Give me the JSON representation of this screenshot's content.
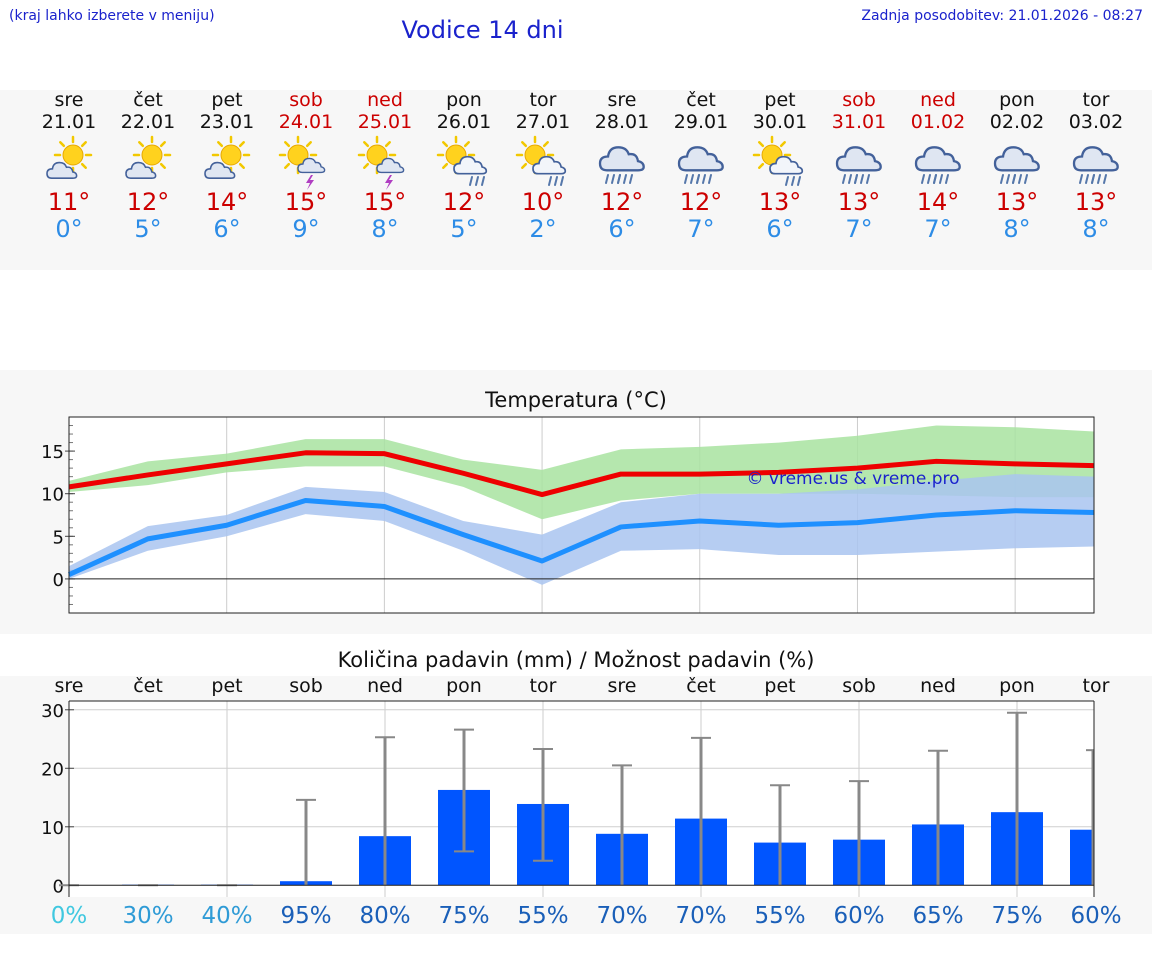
{
  "header": {
    "menu_hint": "(kraj lahko izberete v meniju)",
    "title": "Vodice 14 dni",
    "last_update": "Zadnja posodobitev: 21.01.2026 - 08:27"
  },
  "colors": {
    "accent_blue": "#1a22cc",
    "max_red": "#cc0000",
    "min_blue": "#2d8ce6",
    "max_band": "#a8e3a0",
    "min_band": "#a9c4f0",
    "bar_blue": "#0055ff",
    "whisker_gray": "#888888"
  },
  "days": [
    {
      "name": "sre",
      "date": "21.01",
      "weekend": false,
      "icon": "sun-cloud-icon",
      "tmax": "11°",
      "tmin": "0°"
    },
    {
      "name": "čet",
      "date": "22.01",
      "weekend": false,
      "icon": "sun-cloud-icon",
      "tmax": "12°",
      "tmin": "5°"
    },
    {
      "name": "pet",
      "date": "23.01",
      "weekend": false,
      "icon": "sun-cloud-icon",
      "tmax": "14°",
      "tmin": "6°"
    },
    {
      "name": "sob",
      "date": "24.01",
      "weekend": true,
      "icon": "sun-storm-icon",
      "tmax": "15°",
      "tmin": "9°"
    },
    {
      "name": "ned",
      "date": "25.01",
      "weekend": true,
      "icon": "sun-storm-icon",
      "tmax": "15°",
      "tmin": "8°"
    },
    {
      "name": "pon",
      "date": "26.01",
      "weekend": false,
      "icon": "sun-rain-icon",
      "tmax": "12°",
      "tmin": "5°"
    },
    {
      "name": "tor",
      "date": "27.01",
      "weekend": false,
      "icon": "sun-rain-icon",
      "tmax": "10°",
      "tmin": "2°"
    },
    {
      "name": "sre",
      "date": "28.01",
      "weekend": false,
      "icon": "heavy-rain-icon",
      "tmax": "12°",
      "tmin": "6°"
    },
    {
      "name": "čet",
      "date": "29.01",
      "weekend": false,
      "icon": "heavy-rain-icon",
      "tmax": "12°",
      "tmin": "7°"
    },
    {
      "name": "pet",
      "date": "30.01",
      "weekend": false,
      "icon": "sun-rain-icon",
      "tmax": "13°",
      "tmin": "6°"
    },
    {
      "name": "sob",
      "date": "31.01",
      "weekend": true,
      "icon": "heavy-rain-icon",
      "tmax": "13°",
      "tmin": "7°"
    },
    {
      "name": "ned",
      "date": "01.02",
      "weekend": true,
      "icon": "heavy-rain-icon",
      "tmax": "14°",
      "tmin": "7°"
    },
    {
      "name": "pon",
      "date": "02.02",
      "weekend": false,
      "icon": "heavy-rain-icon",
      "tmax": "13°",
      "tmin": "8°"
    },
    {
      "name": "tor",
      "date": "03.02",
      "weekend": false,
      "icon": "heavy-rain-icon",
      "tmax": "13°",
      "tmin": "8°"
    }
  ],
  "chart_data": [
    {
      "type": "line",
      "title": "Temperatura (°C)",
      "watermark": "© vreme.us & vreme.pro",
      "x": [
        "21.01",
        "22.01",
        "23.01",
        "24.01",
        "25.01",
        "26.01",
        "27.01",
        "28.01",
        "29.01",
        "30.01",
        "31.01",
        "01.02",
        "02.02",
        "03.02"
      ],
      "ylim": [
        -4,
        19
      ],
      "yticks": [
        0,
        5,
        10,
        15
      ],
      "series": [
        {
          "name": "max",
          "color": "#ee0000",
          "values": [
            10.8,
            12.2,
            13.5,
            14.8,
            14.7,
            12.4,
            9.9,
            12.3,
            12.3,
            12.5,
            13.0,
            13.8,
            13.5,
            13.3
          ]
        },
        {
          "name": "max_low",
          "values": [
            10.2,
            11.0,
            12.5,
            13.2,
            13.2,
            10.8,
            7.0,
            9.2,
            10.0,
            10.0,
            10.0,
            9.8,
            9.6,
            9.6
          ]
        },
        {
          "name": "max_high",
          "values": [
            11.5,
            13.8,
            14.7,
            16.4,
            16.4,
            14.0,
            12.8,
            15.2,
            15.5,
            16.0,
            16.8,
            18.0,
            17.8,
            17.3
          ]
        },
        {
          "name": "min",
          "color": "#1e90ff",
          "values": [
            0.5,
            4.7,
            6.3,
            9.2,
            8.5,
            5.2,
            2.1,
            6.1,
            6.8,
            6.3,
            6.6,
            7.5,
            8.0,
            7.8
          ]
        },
        {
          "name": "min_low",
          "values": [
            0.0,
            3.3,
            5.0,
            7.6,
            6.8,
            3.3,
            -0.7,
            3.3,
            3.5,
            2.8,
            2.8,
            3.2,
            3.6,
            3.8
          ]
        },
        {
          "name": "min_high",
          "values": [
            1.5,
            6.2,
            7.5,
            10.8,
            10.2,
            6.8,
            5.2,
            9.0,
            10.0,
            10.0,
            10.5,
            11.5,
            12.3,
            12.0
          ]
        }
      ]
    },
    {
      "type": "bar",
      "title": "Količina padavin (mm) / Možnost padavin (%)",
      "categories": [
        "sre",
        "čet",
        "pet",
        "sob",
        "ned",
        "pon",
        "tor",
        "sre",
        "čet",
        "pet",
        "sob",
        "ned",
        "pon",
        "tor"
      ],
      "values": [
        0.0,
        0.1,
        0.1,
        0.7,
        8.4,
        16.3,
        13.9,
        8.8,
        11.4,
        7.3,
        7.8,
        10.4,
        12.5,
        9.5
      ],
      "error_low": [
        0,
        0,
        0,
        0,
        0,
        5.8,
        4.2,
        0,
        0,
        0,
        0,
        0,
        0,
        0
      ],
      "error_high": [
        0,
        0,
        0,
        14.6,
        25.3,
        26.6,
        23.3,
        20.5,
        25.2,
        17.1,
        17.8,
        23.0,
        29.5,
        23.1
      ],
      "chances": [
        "0%",
        "30%",
        "40%",
        "95%",
        "80%",
        "75%",
        "55%",
        "70%",
        "70%",
        "55%",
        "60%",
        "65%",
        "75%",
        "60%"
      ],
      "chance_colors": [
        "#40c8e0",
        "#2f9bd6",
        "#2f9bd6",
        "#1a5fb8",
        "#1a5fb8",
        "#1a5fb8",
        "#1a5fb8",
        "#1a5fb8",
        "#1a5fb8",
        "#1a5fb8",
        "#1a5fb8",
        "#1a5fb8",
        "#1a5fb8",
        "#1a5fb8"
      ],
      "ylim": [
        -2,
        31.5
      ],
      "yticks": [
        0,
        10,
        20,
        30
      ]
    }
  ]
}
